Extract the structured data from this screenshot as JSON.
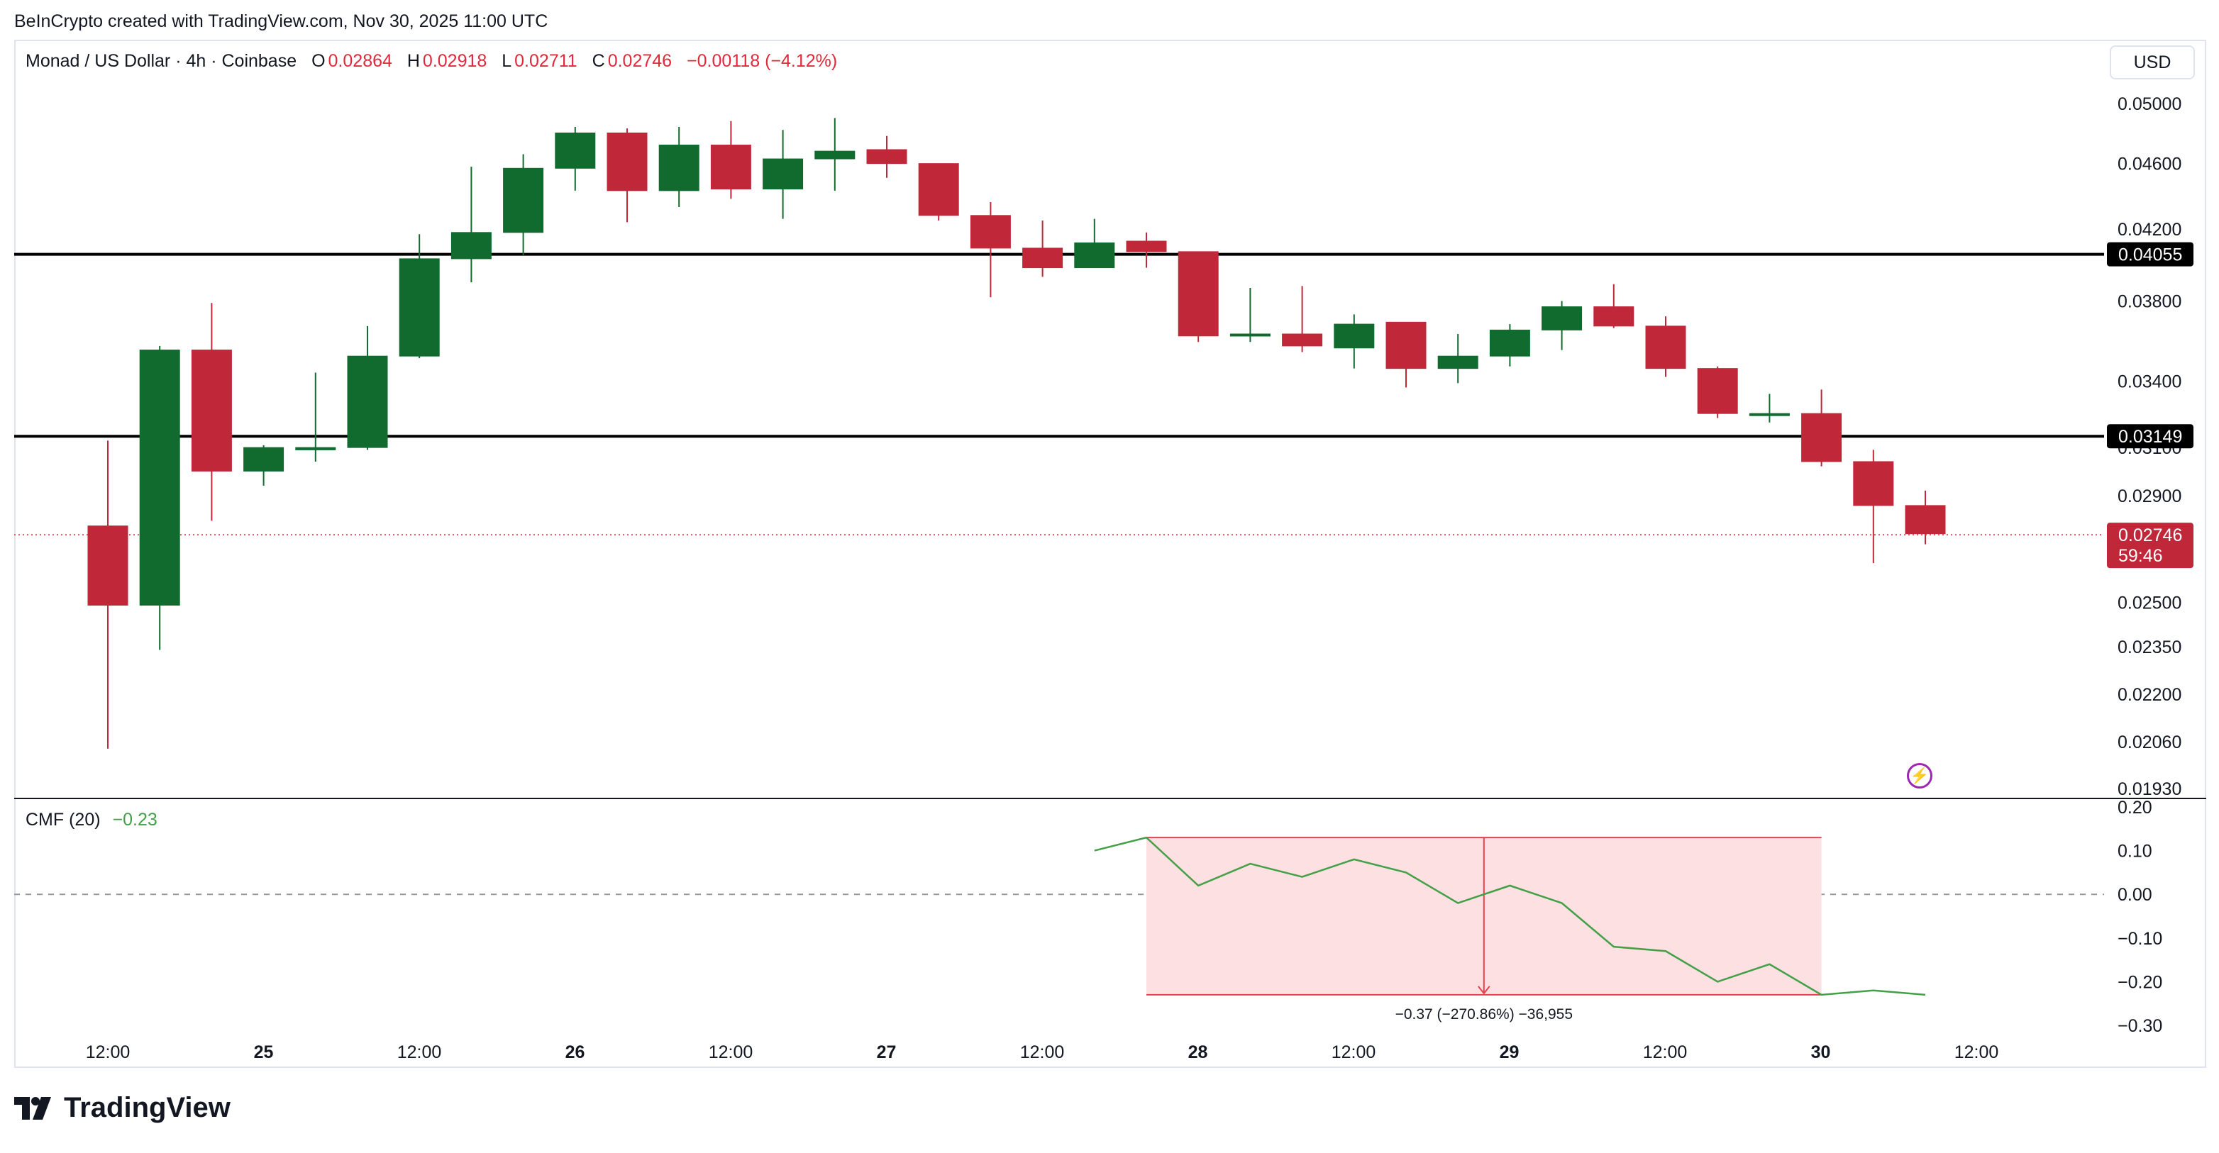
{
  "header": {
    "attribution": "BeInCrypto created with TradingView.com, Nov 30, 2025 11:00 UTC"
  },
  "legend": {
    "symbol": "Monad / US Dollar · 4h · Coinbase",
    "o_label": "O",
    "o_value": "0.02864",
    "h_label": "H",
    "h_value": "0.02918",
    "l_label": "L",
    "l_value": "0.02711",
    "c_label": "C",
    "c_value": "0.02746",
    "change": "−0.00118 (−4.12%)"
  },
  "currency_button": "USD",
  "cmf_legend": {
    "name": "CMF (20)",
    "value": "−0.23"
  },
  "brand": "TradingView",
  "colors": {
    "up": "#116b2f",
    "down": "#c0283a",
    "cmf_line": "#43a047",
    "zone_fill": "#fde0e2",
    "zone_stroke": "#e8404f",
    "line": "#000000",
    "dotted": "#e05566"
  },
  "chart_data": [
    {
      "type": "candlestick",
      "title": "Monad / US Dollar · 4h · Coinbase",
      "y_scale": "log",
      "ylim": [
        0.0193,
        0.0513
      ],
      "y_ticks": [
        "0.05000",
        "0.04600",
        "0.04200",
        "0.03800",
        "0.03400",
        "0.03100",
        "0.02900",
        "0.02500",
        "0.02350",
        "0.02200",
        "0.02060",
        "0.01930"
      ],
      "x_ticks": [
        "12:00",
        "25",
        "12:00",
        "26",
        "12:00",
        "27",
        "12:00",
        "28",
        "12:00",
        "29",
        "12:00",
        "30",
        "12:00"
      ],
      "candles": [
        {
          "o": 0.0278,
          "h": 0.0313,
          "l": 0.0204,
          "c": 0.0249
        },
        {
          "o": 0.0249,
          "h": 0.0357,
          "l": 0.0234,
          "c": 0.0355
        },
        {
          "o": 0.0355,
          "h": 0.0379,
          "l": 0.028,
          "c": 0.03
        },
        {
          "o": 0.03,
          "h": 0.0311,
          "l": 0.0294,
          "c": 0.031
        },
        {
          "o": 0.0309,
          "h": 0.0344,
          "l": 0.0304,
          "c": 0.031
        },
        {
          "o": 0.031,
          "h": 0.0367,
          "l": 0.0309,
          "c": 0.0352
        },
        {
          "o": 0.0352,
          "h": 0.0417,
          "l": 0.0351,
          "c": 0.0403
        },
        {
          "o": 0.0403,
          "h": 0.0458,
          "l": 0.039,
          "c": 0.0418
        },
        {
          "o": 0.0418,
          "h": 0.0466,
          "l": 0.0405,
          "c": 0.0457
        },
        {
          "o": 0.0457,
          "h": 0.0484,
          "l": 0.0443,
          "c": 0.048
        },
        {
          "o": 0.048,
          "h": 0.0483,
          "l": 0.0424,
          "c": 0.0443
        },
        {
          "o": 0.0443,
          "h": 0.0484,
          "l": 0.0433,
          "c": 0.0472
        },
        {
          "o": 0.0472,
          "h": 0.0488,
          "l": 0.0438,
          "c": 0.0444
        },
        {
          "o": 0.0444,
          "h": 0.0482,
          "l": 0.0426,
          "c": 0.0463
        },
        {
          "o": 0.0463,
          "h": 0.049,
          "l": 0.0443,
          "c": 0.0468
        },
        {
          "o": 0.0469,
          "h": 0.0478,
          "l": 0.0451,
          "c": 0.046
        },
        {
          "o": 0.046,
          "h": 0.046,
          "l": 0.0425,
          "c": 0.0428
        },
        {
          "o": 0.0428,
          "h": 0.0436,
          "l": 0.0382,
          "c": 0.0409
        },
        {
          "o": 0.0409,
          "h": 0.0425,
          "l": 0.0393,
          "c": 0.0398
        },
        {
          "o": 0.0398,
          "h": 0.0426,
          "l": 0.0398,
          "c": 0.0412
        },
        {
          "o": 0.0413,
          "h": 0.0418,
          "l": 0.0398,
          "c": 0.0407
        },
        {
          "o": 0.0407,
          "h": 0.0407,
          "l": 0.0359,
          "c": 0.0362
        },
        {
          "o": 0.0362,
          "h": 0.0387,
          "l": 0.0359,
          "c": 0.0363
        },
        {
          "o": 0.0363,
          "h": 0.0388,
          "l": 0.0354,
          "c": 0.0357
        },
        {
          "o": 0.0356,
          "h": 0.0373,
          "l": 0.0346,
          "c": 0.0368
        },
        {
          "o": 0.0369,
          "h": 0.0369,
          "l": 0.0337,
          "c": 0.0346
        },
        {
          "o": 0.0346,
          "h": 0.0363,
          "l": 0.0339,
          "c": 0.0352
        },
        {
          "o": 0.0352,
          "h": 0.0368,
          "l": 0.0347,
          "c": 0.0365
        },
        {
          "o": 0.0365,
          "h": 0.038,
          "l": 0.0355,
          "c": 0.0377
        },
        {
          "o": 0.0377,
          "h": 0.0389,
          "l": 0.0366,
          "c": 0.0367
        },
        {
          "o": 0.0367,
          "h": 0.0372,
          "l": 0.0342,
          "c": 0.0346
        },
        {
          "o": 0.0346,
          "h": 0.0347,
          "l": 0.0323,
          "c": 0.0325
        },
        {
          "o": 0.0325,
          "h": 0.0334,
          "l": 0.0321,
          "c": 0.0325
        },
        {
          "o": 0.0325,
          "h": 0.0336,
          "l": 0.0302,
          "c": 0.0304
        },
        {
          "o": 0.0304,
          "h": 0.0309,
          "l": 0.0264,
          "c": 0.0286
        },
        {
          "o": 0.0286,
          "h": 0.0292,
          "l": 0.0271,
          "c": 0.0275
        }
      ],
      "horizontal_lines": [
        {
          "value": 0.04055,
          "label": "0.04055"
        },
        {
          "value": 0.03149,
          "label": "0.03149"
        }
      ],
      "last_price": {
        "value": 0.02746,
        "label": "0.02746",
        "countdown": "59:46"
      }
    },
    {
      "type": "line",
      "name": "CMF (20)",
      "ylim": [
        -0.3,
        0.2
      ],
      "y_ticks": [
        "0.20",
        "0.10",
        "0.00",
        "−0.10",
        "−0.20",
        "−0.30"
      ],
      "x_start_index": 19,
      "values": [
        0.1,
        0.13,
        0.02,
        0.07,
        0.04,
        0.08,
        0.05,
        -0.02,
        0.02,
        -0.02,
        -0.12,
        -0.13,
        -0.2,
        -0.16,
        -0.23,
        -0.22,
        -0.23
      ],
      "zero_line": 0.0,
      "measure": {
        "from_index": 20,
        "to_index": 33,
        "top": 0.13,
        "bottom": -0.23,
        "label": "−0.37 (−270.86%) −36,955"
      }
    }
  ]
}
